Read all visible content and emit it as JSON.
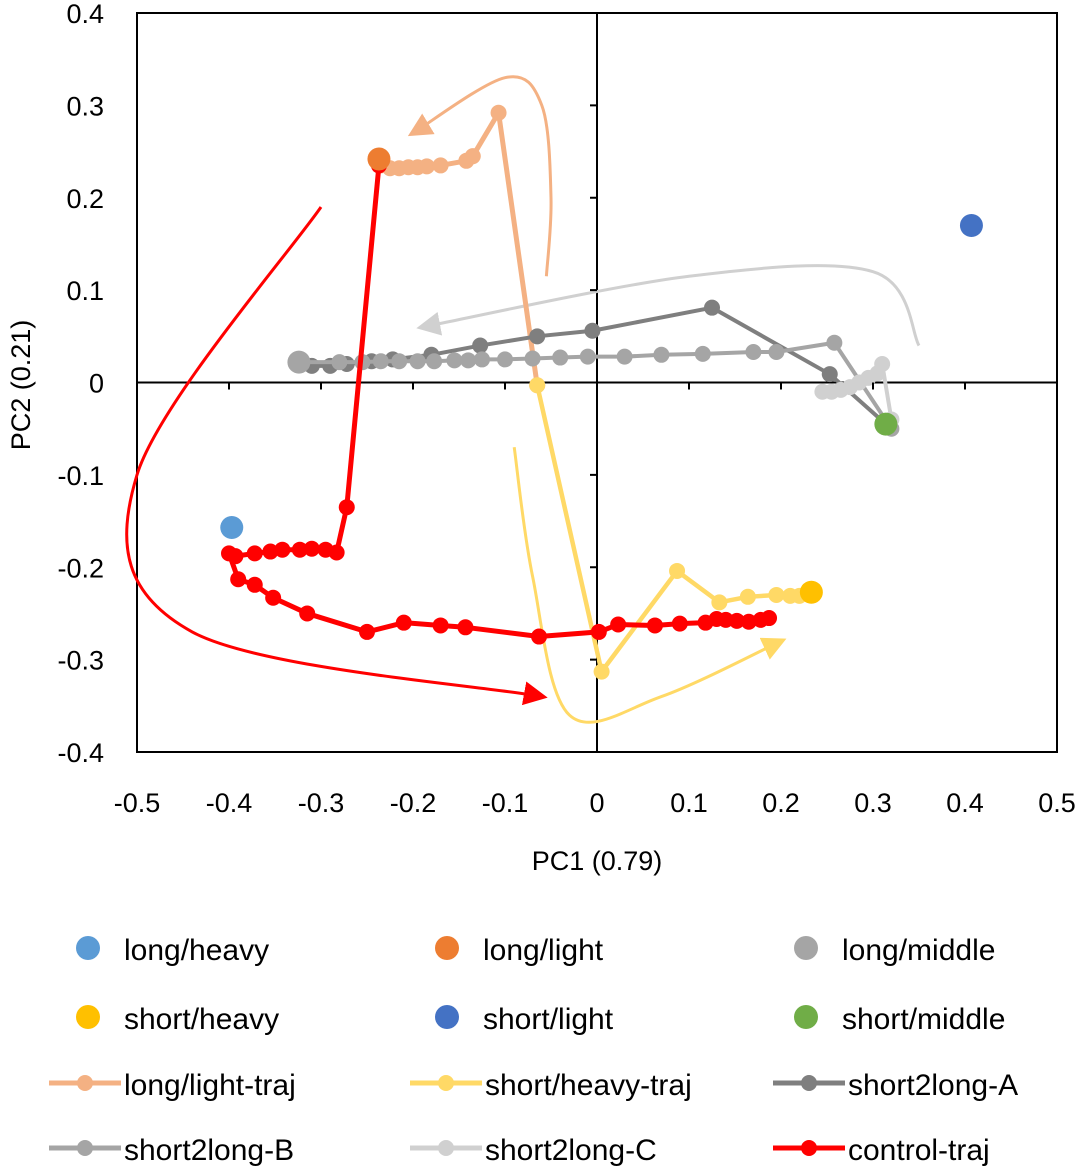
{
  "chart_data": {
    "type": "scatter",
    "title": "",
    "xlabel": "PC1 (0.79)",
    "ylabel": "PC2 (0.21)",
    "xlim": [
      -0.5,
      0.5
    ],
    "ylim": [
      -0.4,
      0.4
    ],
    "x_ticks": [
      "-0.5",
      "-0.4",
      "-0.3",
      "-0.2",
      "-0.1",
      "0",
      "0.1",
      "0.2",
      "0.3",
      "0.4",
      "0.5"
    ],
    "y_ticks": [
      "-0.4",
      "-0.3",
      "-0.2",
      "-0.1",
      "0",
      "0.1",
      "0.2",
      "0.3",
      "0.4"
    ],
    "grid": false,
    "legend_position": "bottom",
    "points": [
      {
        "name": "long/heavy",
        "color": "#5b9bd5",
        "x": -0.397,
        "y": -0.157
      },
      {
        "name": "long/light",
        "color": "#ed7d31",
        "x": -0.237,
        "y": 0.242
      },
      {
        "name": "long/middle",
        "color": "#a5a5a5",
        "x": -0.324,
        "y": 0.022
      },
      {
        "name": "short/heavy",
        "color": "#ffc000",
        "x": 0.233,
        "y": -0.227
      },
      {
        "name": "short/light",
        "color": "#4472c4",
        "x": 0.407,
        "y": 0.17
      },
      {
        "name": "short/middle",
        "color": "#70ad47",
        "x": 0.314,
        "y": -0.045
      }
    ],
    "series": [
      {
        "name": "long/light-traj",
        "color": "#f4b183",
        "x": [
          -0.235,
          -0.225,
          -0.215,
          -0.205,
          -0.195,
          -0.185,
          -0.17,
          -0.142,
          -0.135,
          -0.107,
          -0.065
        ],
        "y": [
          0.235,
          0.232,
          0.232,
          0.233,
          0.233,
          0.234,
          0.235,
          0.24,
          0.245,
          0.292,
          -0.003
        ]
      },
      {
        "name": "short/heavy-traj",
        "color": "#ffd966",
        "x": [
          -0.065,
          0.005,
          0.087,
          0.133,
          0.164,
          0.195,
          0.21,
          0.22,
          0.232
        ],
        "y": [
          -0.003,
          -0.313,
          -0.204,
          -0.238,
          -0.232,
          -0.23,
          -0.231,
          -0.231,
          -0.227
        ]
      },
      {
        "name": "short2long-A",
        "color": "#7f7f7f",
        "x": [
          -0.31,
          -0.29,
          -0.272,
          -0.245,
          -0.222,
          -0.18,
          -0.127,
          -0.065,
          -0.005,
          0.125,
          0.253,
          0.314
        ],
        "y": [
          0.018,
          0.018,
          0.02,
          0.023,
          0.025,
          0.03,
          0.04,
          0.05,
          0.056,
          0.081,
          0.009,
          -0.045
        ]
      },
      {
        "name": "short2long-B",
        "color": "#a5a5a5",
        "x": [
          -0.324,
          -0.28,
          -0.255,
          -0.235,
          -0.215,
          -0.195,
          -0.177,
          -0.155,
          -0.14,
          -0.125,
          -0.1,
          -0.07,
          -0.04,
          -0.01,
          0.03,
          0.07,
          0.115,
          0.17,
          0.195,
          0.258,
          0.32
        ],
        "y": [
          0.022,
          0.022,
          0.022,
          0.023,
          0.023,
          0.023,
          0.023,
          0.024,
          0.024,
          0.025,
          0.025,
          0.026,
          0.027,
          0.028,
          0.028,
          0.03,
          0.031,
          0.033,
          0.033,
          0.043,
          -0.05
        ]
      },
      {
        "name": "short2long-C",
        "color": "#d0d0d0",
        "x": [
          0.245,
          0.255,
          0.265,
          0.275,
          0.285,
          0.295,
          0.305,
          0.31,
          0.32
        ],
        "y": [
          -0.01,
          -0.01,
          -0.008,
          -0.005,
          0.0,
          0.005,
          0.01,
          0.02,
          -0.04
        ]
      },
      {
        "name": "control-traj",
        "color": "#ff0000",
        "x": [
          -0.237,
          -0.272,
          -0.283,
          -0.295,
          -0.31,
          -0.323,
          -0.342,
          -0.355,
          -0.372,
          -0.393,
          -0.4,
          -0.39,
          -0.372,
          -0.352,
          -0.315,
          -0.25,
          -0.21,
          -0.17,
          -0.143,
          -0.063,
          0.002,
          0.023,
          0.063,
          0.09,
          0.118,
          0.13,
          0.14,
          0.152,
          0.165,
          0.178,
          0.187
        ],
        "y": [
          0.235,
          -0.135,
          -0.184,
          -0.181,
          -0.18,
          -0.181,
          -0.181,
          -0.183,
          -0.185,
          -0.188,
          -0.185,
          -0.213,
          -0.219,
          -0.233,
          -0.25,
          -0.27,
          -0.26,
          -0.263,
          -0.265,
          -0.275,
          -0.27,
          -0.262,
          -0.263,
          -0.261,
          -0.26,
          -0.256,
          -0.257,
          -0.258,
          -0.259,
          -0.257,
          -0.255
        ]
      }
    ],
    "annotations": [
      {
        "kind": "arrow",
        "color": "#f4b183",
        "x": [
          -0.055,
          -0.05,
          -0.06,
          -0.1,
          -0.2
        ],
        "y": [
          0.115,
          0.2,
          0.3,
          0.33,
          0.27
        ]
      },
      {
        "kind": "arrow",
        "color": "#d0d0d0",
        "x": [
          0.35,
          0.3,
          0.1,
          -0.19
        ],
        "y": [
          0.04,
          0.12,
          0.115,
          0.06
        ]
      },
      {
        "kind": "arrow",
        "color": "#ff0000",
        "x": [
          -0.3,
          -0.5,
          -0.44,
          -0.06
        ],
        "y": [
          0.19,
          -0.1,
          -0.27,
          -0.34
        ]
      },
      {
        "kind": "arrow",
        "color": "#ffd966",
        "x": [
          -0.09,
          -0.07,
          -0.03,
          0.07,
          0.2
        ],
        "y": [
          -0.07,
          -0.21,
          -0.36,
          -0.34,
          -0.28
        ]
      }
    ]
  },
  "legend": {
    "markers": [
      {
        "label": "long/heavy",
        "color": "#5b9bd5"
      },
      {
        "label": "long/light",
        "color": "#ed7d31"
      },
      {
        "label": "long/middle",
        "color": "#a5a5a5"
      },
      {
        "label": "short/heavy",
        "color": "#ffc000"
      },
      {
        "label": "short/light",
        "color": "#4472c4"
      },
      {
        "label": "short/middle",
        "color": "#70ad47"
      }
    ],
    "lines": [
      {
        "label": "long/light-traj",
        "color": "#f4b183"
      },
      {
        "label": "short/heavy-traj",
        "color": "#ffd966"
      },
      {
        "label": "short2long-A",
        "color": "#7f7f7f"
      },
      {
        "label": "short2long-B",
        "color": "#a5a5a5"
      },
      {
        "label": "short2long-C",
        "color": "#d0d0d0"
      },
      {
        "label": "control-traj",
        "color": "#ff0000"
      }
    ]
  }
}
